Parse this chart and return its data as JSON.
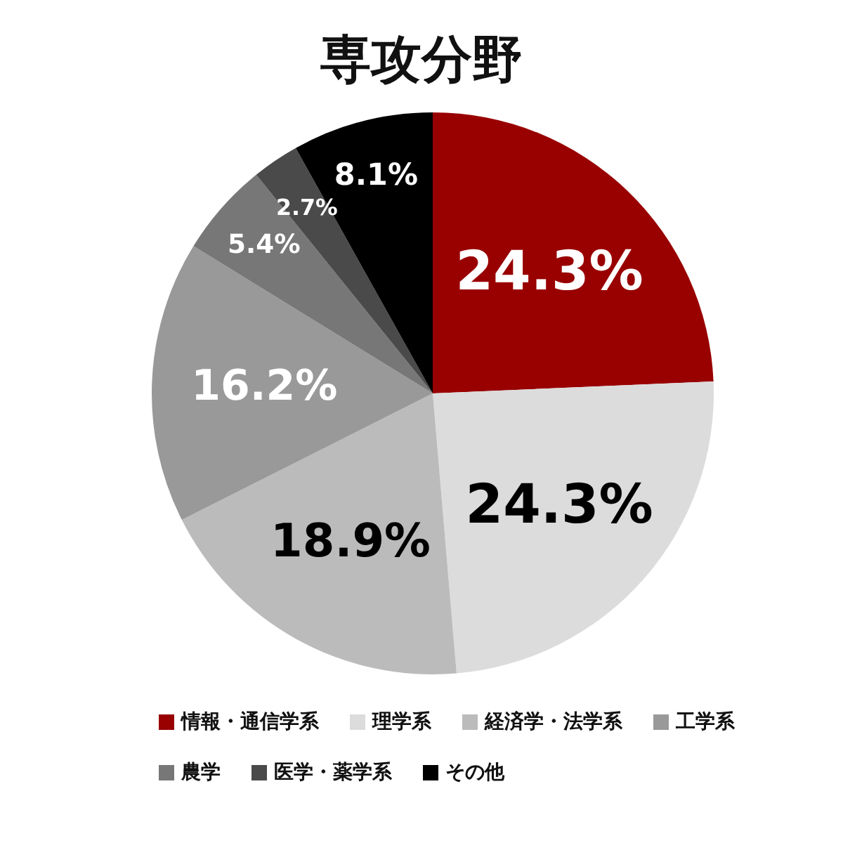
{
  "chart_data": {
    "type": "pie",
    "title": "専攻分野",
    "categories": [
      "情報・通信学系",
      "理学系",
      "経済学・法学系",
      "工学系",
      "農学",
      "医学・薬学系",
      "その他"
    ],
    "values": [
      24.3,
      24.3,
      18.9,
      16.2,
      5.4,
      2.7,
      8.1
    ],
    "value_labels": [
      "24.3%",
      "24.3%",
      "18.9%",
      "16.2%",
      "5.4%",
      "2.7%",
      "8.1%"
    ],
    "colors": [
      "#990000",
      "#dcdcdc",
      "#bbbbbb",
      "#999999",
      "#777777",
      "#4a4a4a",
      "#000000"
    ],
    "legend": "bottom"
  }
}
